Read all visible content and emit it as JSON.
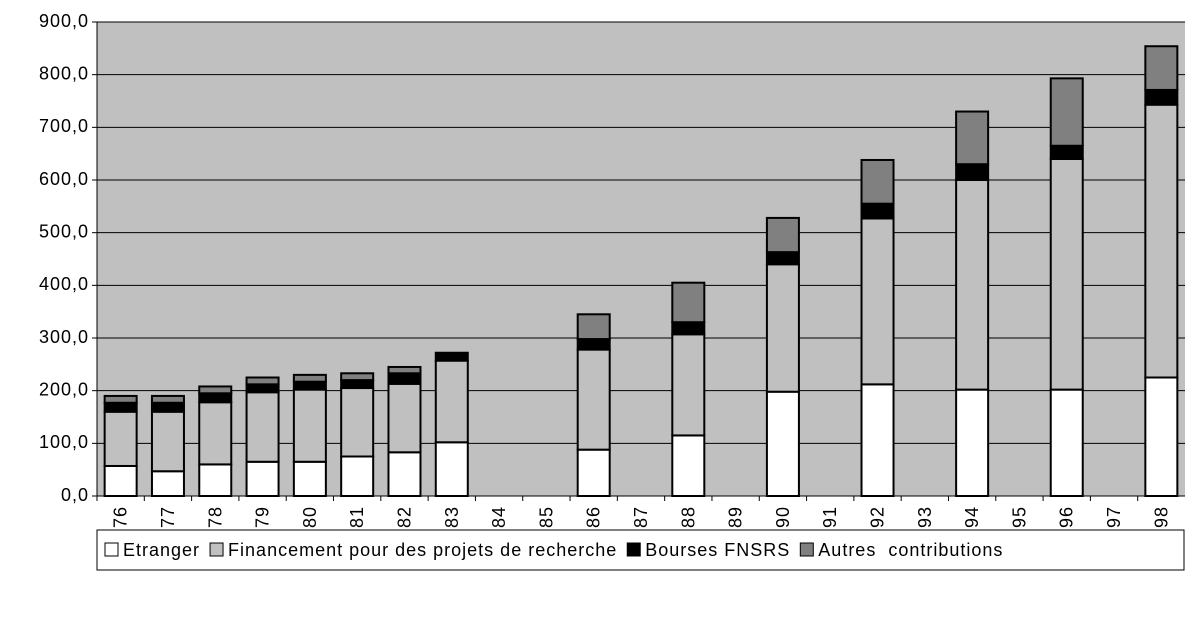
{
  "chart_data": {
    "type": "bar",
    "stacked": true,
    "categories": [
      "1976",
      "1977",
      "1978",
      "1979",
      "1980",
      "1981",
      "1982",
      "1983",
      "1984",
      "1985",
      "1986",
      "1987",
      "1988",
      "1989",
      "1990",
      "1991",
      "1992",
      "1993",
      "1994",
      "1995",
      "1996",
      "1997",
      "1998"
    ],
    "series": [
      {
        "name": "Etranger",
        "color": "#ffffff",
        "values": [
          57,
          47,
          60,
          65,
          65,
          75,
          83,
          102,
          null,
          null,
          88,
          null,
          115,
          null,
          198,
          null,
          212,
          null,
          202,
          null,
          202,
          null,
          225
        ]
      },
      {
        "name": "Financement pour des projets de recherche",
        "color": "#c0c0c0",
        "values": [
          103,
          113,
          118,
          132,
          137,
          130,
          130,
          155,
          null,
          null,
          190,
          null,
          192,
          null,
          242,
          null,
          315,
          null,
          398,
          null,
          438,
          null,
          518
        ]
      },
      {
        "name": "Bourses FNSRS",
        "color": "#000000",
        "values": [
          17,
          17,
          17,
          15,
          15,
          15,
          20,
          15,
          null,
          null,
          20,
          null,
          23,
          null,
          23,
          null,
          28,
          null,
          30,
          null,
          25,
          null,
          28
        ]
      },
      {
        "name": "Autres  contributions",
        "color": "#808080",
        "values": [
          13,
          13,
          13,
          13,
          13,
          13,
          12,
          0,
          null,
          null,
          47,
          null,
          75,
          null,
          65,
          null,
          83,
          null,
          100,
          null,
          128,
          null,
          83
        ]
      }
    ],
    "ylim": [
      0,
      900
    ],
    "yticks": [
      {
        "value": 0,
        "label": "0,0"
      },
      {
        "value": 100,
        "label": "100,0"
      },
      {
        "value": 200,
        "label": "200,0"
      },
      {
        "value": 300,
        "label": "300,0"
      },
      {
        "value": 400,
        "label": "400,0"
      },
      {
        "value": 500,
        "label": "500,0"
      },
      {
        "value": 600,
        "label": "600,0"
      },
      {
        "value": 700,
        "label": "700,0"
      },
      {
        "value": 800,
        "label": "800,0"
      },
      {
        "value": 900,
        "label": "900,0"
      }
    ],
    "grid": true,
    "plot_background": "#c0c0c0",
    "legend": "bottom"
  }
}
